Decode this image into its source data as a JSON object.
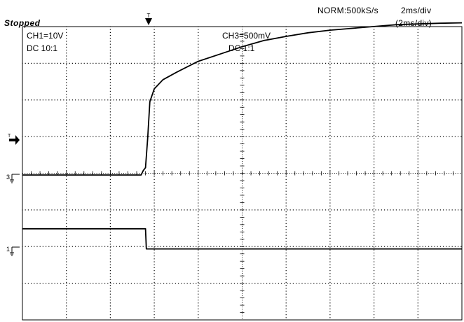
{
  "header": {
    "status": "Stopped",
    "acquisition": "NORM:500kS/s",
    "timebase": "2ms/div",
    "timebase_secondary": "(2ms/div)"
  },
  "channels": {
    "ch1": {
      "scale": "CH1=10V",
      "coupling": "DC  10:1",
      "marker": "1"
    },
    "ch3": {
      "scale": "CH3=500mV",
      "coupling": "DC  1:1",
      "marker": "3"
    }
  },
  "markers": {
    "trigger_position": "T",
    "trigger_level": "T"
  },
  "colors": {
    "background": "#ffffff",
    "trace": "#000000",
    "grid": "#000000"
  },
  "chart_data": {
    "type": "line",
    "divisions": {
      "x": 10,
      "y": 8
    },
    "grid": true,
    "series": [
      {
        "channel": "CH3",
        "x": [
          0,
          2.7,
          2.75,
          2.8,
          2.85,
          2.9,
          3.0,
          3.2,
          3.5,
          4.0,
          4.5,
          5.0,
          5.5,
          6.0,
          6.5,
          7.0,
          7.5,
          8.0,
          8.5,
          9.0,
          9.5,
          10.0
        ],
        "y": [
          0,
          0,
          0.12,
          0.2,
          1.0,
          2.0,
          2.35,
          2.6,
          2.8,
          3.1,
          3.3,
          3.5,
          3.67,
          3.78,
          3.88,
          3.95,
          4.0,
          4.05,
          4.1,
          4.12,
          4.14,
          4.15
        ]
      },
      {
        "channel": "CH1",
        "x": [
          0,
          2.8,
          2.82,
          10.0
        ],
        "y": [
          0.5,
          0.5,
          -0.05,
          -0.05
        ]
      }
    ]
  }
}
